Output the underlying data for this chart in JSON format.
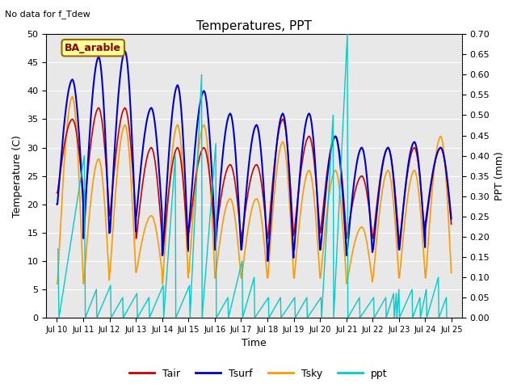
{
  "title": "Temperatures, PPT",
  "subtitle": "No data for f_Tdew",
  "box_label": "BA_arable",
  "xlabel": "Time",
  "ylabel_left": "Temperature (C)",
  "ylabel_right": "PPT (mm)",
  "ylim_left": [
    0,
    50
  ],
  "ylim_right": [
    0.0,
    0.7
  ],
  "yticks_left": [
    0,
    5,
    10,
    15,
    20,
    25,
    30,
    35,
    40,
    45,
    50
  ],
  "yticks_right": [
    0.0,
    0.05,
    0.1,
    0.15,
    0.2,
    0.25,
    0.3,
    0.35,
    0.4,
    0.45,
    0.5,
    0.55,
    0.6,
    0.65,
    0.7
  ],
  "colors": {
    "Tair": "#cc0000",
    "Tsurf": "#0000cc",
    "Tsky": "#ff9900",
    "ppt": "#00cccc",
    "plot_bg": "#e8e8e8",
    "grid": "#ffffff"
  },
  "start_day": 9.6,
  "end_day": 25.4,
  "xtick_days": [
    10,
    11,
    12,
    13,
    14,
    15,
    16,
    17,
    18,
    19,
    20,
    21,
    22,
    23,
    24,
    25
  ],
  "xtick_labels": [
    "Jul 10",
    "Jul 11",
    "Jul 12",
    "Jul 13",
    "Jul 14",
    "Jul 15",
    "Jul 16",
    "Jul 17",
    "Jul 18",
    "Jul 19",
    "Jul 20",
    "Jul 21",
    "Jul 22",
    "Jul 23",
    "Jul 24",
    "Jul 25"
  ],
  "day_maxTair": [
    35,
    37,
    37,
    30,
    30,
    30,
    27,
    27,
    35,
    32,
    32,
    25,
    30,
    30,
    30,
    32
  ],
  "day_minTair": [
    22,
    18,
    18,
    14,
    11,
    15,
    14,
    14,
    14,
    15,
    15,
    14,
    14,
    13,
    16,
    16
  ],
  "day_maxTsurf": [
    42,
    46,
    47,
    37,
    41,
    40,
    36,
    34,
    36,
    36,
    32,
    30,
    30,
    31,
    30,
    32
  ],
  "day_minTsurf": [
    20,
    14,
    15,
    18,
    11,
    16,
    12,
    12,
    10,
    12,
    12,
    11,
    12,
    12,
    17,
    17
  ],
  "day_maxTsky": [
    39,
    28,
    34,
    18,
    34,
    34,
    21,
    21,
    31,
    26,
    26,
    16,
    26,
    26,
    32,
    32
  ],
  "day_minTsky": [
    6,
    6,
    8,
    8,
    6,
    8,
    7,
    7,
    7,
    7,
    7,
    6,
    7,
    7,
    7,
    7
  ],
  "ppt_events": [
    [
      10.04,
      0.17
    ],
    [
      10.08,
      0.0
    ],
    [
      11.04,
      0.4
    ],
    [
      11.08,
      0.0
    ],
    [
      11.5,
      0.07
    ],
    [
      11.52,
      0.0
    ],
    [
      12.04,
      0.08
    ],
    [
      12.06,
      0.0
    ],
    [
      12.5,
      0.05
    ],
    [
      12.52,
      0.0
    ],
    [
      13.04,
      0.06
    ],
    [
      13.06,
      0.0
    ],
    [
      13.5,
      0.05
    ],
    [
      13.52,
      0.0
    ],
    [
      14.04,
      0.08
    ],
    [
      14.06,
      0.0
    ],
    [
      14.5,
      0.4
    ],
    [
      14.52,
      0.0
    ],
    [
      15.04,
      0.08
    ],
    [
      15.06,
      0.0
    ],
    [
      15.5,
      0.6
    ],
    [
      15.52,
      0.0
    ],
    [
      16.04,
      0.43
    ],
    [
      16.06,
      0.0
    ],
    [
      16.5,
      0.05
    ],
    [
      16.52,
      0.0
    ],
    [
      17.04,
      0.14
    ],
    [
      17.06,
      0.0
    ],
    [
      17.5,
      0.1
    ],
    [
      17.52,
      0.0
    ],
    [
      18.04,
      0.05
    ],
    [
      18.06,
      0.0
    ],
    [
      18.5,
      0.05
    ],
    [
      18.52,
      0.0
    ],
    [
      19.04,
      0.05
    ],
    [
      19.06,
      0.0
    ],
    [
      19.5,
      0.05
    ],
    [
      19.52,
      0.0
    ],
    [
      20.04,
      0.05
    ],
    [
      20.06,
      0.0
    ],
    [
      20.5,
      0.5
    ],
    [
      20.52,
      0.0
    ],
    [
      21.04,
      0.7
    ],
    [
      21.06,
      0.0
    ],
    [
      21.5,
      0.05
    ],
    [
      21.52,
      0.0
    ],
    [
      22.04,
      0.05
    ],
    [
      22.06,
      0.0
    ],
    [
      22.5,
      0.05
    ],
    [
      22.52,
      0.0
    ],
    [
      22.8,
      0.06
    ],
    [
      22.82,
      0.0
    ],
    [
      22.9,
      0.06
    ],
    [
      22.92,
      0.0
    ],
    [
      23.0,
      0.07
    ],
    [
      23.02,
      0.0
    ],
    [
      23.5,
      0.07
    ],
    [
      23.52,
      0.0
    ],
    [
      23.8,
      0.05
    ],
    [
      23.82,
      0.0
    ],
    [
      24.04,
      0.07
    ],
    [
      24.06,
      0.0
    ],
    [
      24.5,
      0.1
    ],
    [
      24.52,
      0.0
    ],
    [
      24.8,
      0.05
    ],
    [
      24.82,
      0.0
    ]
  ]
}
